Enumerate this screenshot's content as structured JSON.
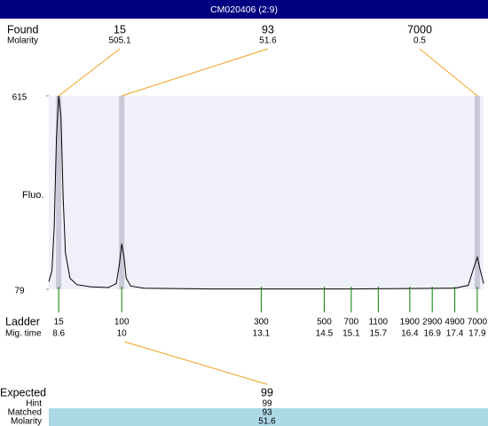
{
  "title": "CM020406 (2:9)",
  "chart_data": {
    "type": "line",
    "y_label": "Fluo.",
    "xlim": [
      8.38,
      18.04
    ],
    "ylim": [
      79,
      615
    ],
    "yticks": [
      615,
      79
    ],
    "background": "#f0f0fa",
    "band_color": "#c8c8d8",
    "series": [
      {
        "color": "#000000",
        "x": [
          8.38,
          8.45,
          8.5,
          8.55,
          8.6,
          8.65,
          8.7,
          8.75,
          8.85,
          9.0,
          9.3,
          9.7,
          9.88,
          9.95,
          10.0,
          10.05,
          10.1,
          10.2,
          10.5,
          12.0,
          15.0,
          17.4,
          17.7,
          17.8,
          17.9,
          17.97,
          18.04
        ],
        "values": [
          100,
          130,
          250,
          500,
          615,
          560,
          330,
          180,
          110,
          92,
          86,
          84,
          95,
          150,
          205,
          170,
          110,
          88,
          82,
          80,
          80,
          82,
          90,
          130,
          168,
          130,
          95
        ]
      }
    ]
  },
  "found": {
    "label": "Found",
    "sub_label": "Molarity",
    "peaks": [
      {
        "size": 15,
        "molarity": 505.1,
        "time": 8.6
      },
      {
        "size": 93,
        "molarity": 51.6,
        "time": 10
      },
      {
        "size": 7000,
        "molarity": 0.5,
        "time": 17.9
      }
    ]
  },
  "ladder": {
    "label": "Ladder",
    "sub_label": "Mig. time",
    "sizes": [
      15,
      100,
      300,
      500,
      700,
      1100,
      1900,
      2900,
      4900,
      7000
    ],
    "times": [
      8.6,
      10,
      13.1,
      14.5,
      15.1,
      15.7,
      16.4,
      16.9,
      17.4,
      17.9
    ]
  },
  "expected": {
    "label": "Expected",
    "value": 99,
    "rows": [
      {
        "label": "Hint",
        "value": 99
      },
      {
        "label": "Matched",
        "value": 93
      },
      {
        "label": "Molarity",
        "value": 51.6
      }
    ]
  }
}
